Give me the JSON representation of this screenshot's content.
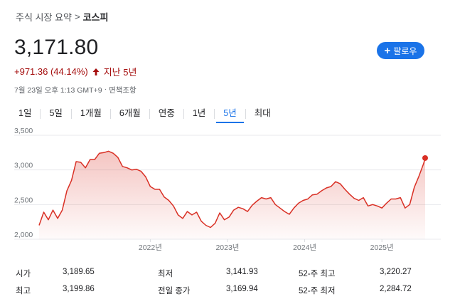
{
  "breadcrumb": {
    "parent": "주식 시장 요약",
    "separator": ">",
    "current": "코스피"
  },
  "price": "3,171.80",
  "change": {
    "text": "+971.36 (44.14%)",
    "period": "지난 5년",
    "color": "#a50e0e"
  },
  "timestamp": {
    "time": "7월 23일 오후 1:13 GMT+9",
    "separator": "·",
    "disclaimer": "면책조항"
  },
  "follow_button": {
    "label": "팔로우",
    "color": "#1a73e8"
  },
  "tabs": [
    "1일",
    "5일",
    "1개월",
    "6개월",
    "연중",
    "1년",
    "5년",
    "최대"
  ],
  "active_tab": "5년",
  "chart_data": {
    "type": "area",
    "y_ticks": [
      "3,500",
      "3,000",
      "2,500",
      "2,000"
    ],
    "x_ticks": [
      "2022년",
      "2023년",
      "2024년",
      "2025년"
    ],
    "ylim": [
      2000,
      3500
    ],
    "grid": true,
    "line_color": "#d93025",
    "x": [
      2020.56,
      2020.62,
      2020.68,
      2020.74,
      2020.8,
      2020.86,
      2020.92,
      2020.98,
      2021.04,
      2021.1,
      2021.16,
      2021.22,
      2021.28,
      2021.34,
      2021.4,
      2021.46,
      2021.52,
      2021.58,
      2021.64,
      2021.7,
      2021.76,
      2021.82,
      2021.88,
      2021.94,
      2022.0,
      2022.06,
      2022.12,
      2022.18,
      2022.24,
      2022.3,
      2022.36,
      2022.42,
      2022.48,
      2022.54,
      2022.6,
      2022.66,
      2022.72,
      2022.78,
      2022.84,
      2022.9,
      2022.96,
      2023.02,
      2023.08,
      2023.14,
      2023.2,
      2023.26,
      2023.32,
      2023.38,
      2023.44,
      2023.5,
      2023.56,
      2023.62,
      2023.68,
      2023.74,
      2023.8,
      2023.86,
      2023.92,
      2023.98,
      2024.04,
      2024.1,
      2024.16,
      2024.22,
      2024.28,
      2024.34,
      2024.4,
      2024.46,
      2024.52,
      2024.58,
      2024.64,
      2024.7,
      2024.76,
      2024.82,
      2024.88,
      2024.94,
      2025.0,
      2025.06,
      2025.12,
      2025.18,
      2025.24,
      2025.3,
      2025.36,
      2025.42,
      2025.48,
      2025.54,
      2025.56
    ],
    "y": [
      2200,
      2390,
      2280,
      2420,
      2300,
      2420,
      2700,
      2850,
      3120,
      3110,
      3030,
      3150,
      3150,
      3240,
      3250,
      3270,
      3240,
      3180,
      3050,
      3030,
      3000,
      3010,
      2980,
      2900,
      2760,
      2720,
      2720,
      2610,
      2560,
      2480,
      2350,
      2300,
      2400,
      2350,
      2390,
      2260,
      2200,
      2170,
      2230,
      2380,
      2280,
      2320,
      2420,
      2460,
      2440,
      2400,
      2490,
      2550,
      2600,
      2580,
      2600,
      2500,
      2450,
      2400,
      2360,
      2450,
      2520,
      2560,
      2580,
      2640,
      2650,
      2700,
      2740,
      2760,
      2830,
      2800,
      2720,
      2650,
      2590,
      2560,
      2600,
      2480,
      2500,
      2480,
      2450,
      2520,
      2580,
      2580,
      2600,
      2450,
      2500,
      2750,
      2910,
      3090,
      3171.8
    ]
  },
  "stats": {
    "rows": [
      {
        "l1": "시가",
        "v1": "3,189.65",
        "l2": "최저",
        "v2": "3,141.93",
        "l3": "52-주 최고",
        "v3": "3,220.27"
      },
      {
        "l1": "최고",
        "v1": "3,199.86",
        "l2": "전일 종가",
        "v2": "3,169.94",
        "l3": "52-주 최저",
        "v3": "2,284.72"
      }
    ]
  }
}
